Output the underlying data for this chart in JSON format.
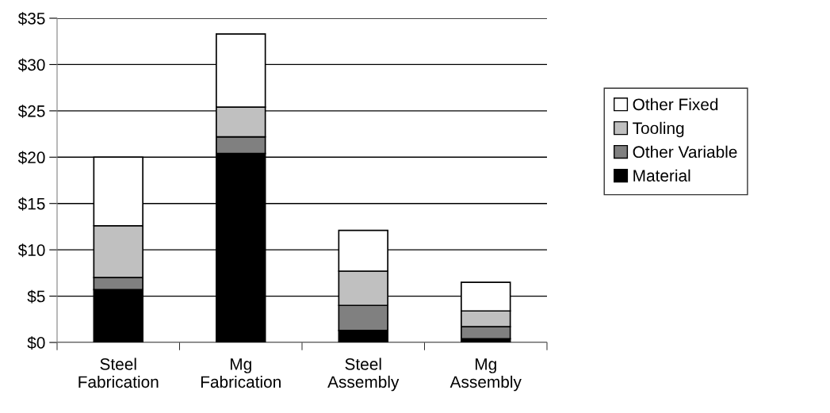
{
  "chart_data": {
    "type": "bar",
    "stacked": true,
    "categories": [
      "Steel\nFabrication",
      "Mg\nFabrication",
      "Steel\nAssembly",
      "Mg\nAssembly"
    ],
    "series": [
      {
        "name": "Material",
        "color": "#000000",
        "values": [
          5.7,
          20.4,
          1.3,
          0.4
        ]
      },
      {
        "name": "Other Variable",
        "color": "#808080",
        "values": [
          1.3,
          1.8,
          2.7,
          1.3
        ]
      },
      {
        "name": "Tooling",
        "color": "#c0c0c0",
        "values": [
          5.6,
          3.2,
          3.7,
          1.7
        ]
      },
      {
        "name": "Other Fixed",
        "color": "#ffffff",
        "values": [
          7.4,
          7.9,
          4.4,
          3.1
        ]
      }
    ],
    "ylim": [
      0,
      35
    ],
    "yticks": [
      {
        "value": 0,
        "label": "$0"
      },
      {
        "value": 5,
        "label": "$5"
      },
      {
        "value": 10,
        "label": "$10"
      },
      {
        "value": 15,
        "label": "$15"
      },
      {
        "value": 20,
        "label": "$20"
      },
      {
        "value": 25,
        "label": "$25"
      },
      {
        "value": 30,
        "label": "$30"
      },
      {
        "value": 35,
        "label": "$35"
      }
    ],
    "grid": "y",
    "legend": "right"
  }
}
